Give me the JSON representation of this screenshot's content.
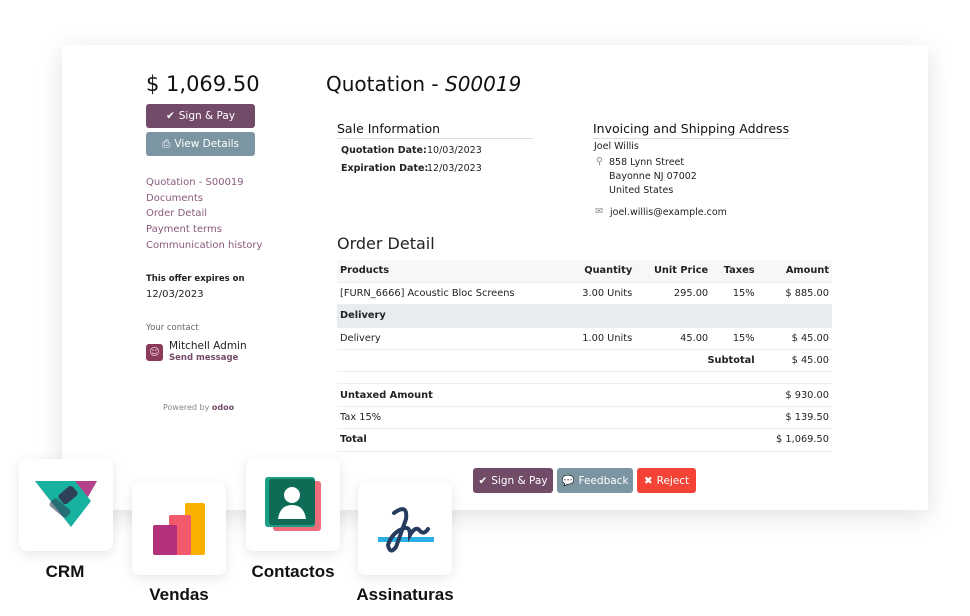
{
  "sidebar": {
    "amount": "$ 1,069.50",
    "sign_pay": "Sign & Pay",
    "view_details": "View Details",
    "nav": [
      "Quotation - S00019",
      "Documents",
      "Order Detail",
      "Payment terms",
      "Communication history"
    ],
    "expires_label": "This offer expires on",
    "expires_date": "12/03/2023",
    "contact_label": "Your contact",
    "contact_name": "Mitchell Admin",
    "send_message": "Send message",
    "powered_by": "Powered by",
    "brand": "odoo"
  },
  "header": {
    "title_prefix": "Quotation - ",
    "title_ref": "S00019"
  },
  "sale_info": {
    "heading": "Sale Information",
    "quotation_date_label": "Quotation Date:",
    "quotation_date": "10/03/2023",
    "expiration_date_label": "Expiration Date:",
    "expiration_date": "12/03/2023"
  },
  "address": {
    "heading": "Invoicing and Shipping Address",
    "name": "Joel Willis",
    "street": "858 Lynn Street",
    "city": "Bayonne NJ 07002",
    "country": "United States",
    "email": "joel.willis@example.com"
  },
  "order": {
    "heading": "Order Detail",
    "columns": [
      "Products",
      "Quantity",
      "Unit Price",
      "Taxes",
      "Amount"
    ],
    "rows": [
      {
        "product": "[FURN_6666] Acoustic Bloc Screens",
        "qty": "3.00 Units",
        "price": "295.00",
        "tax": "15%",
        "amount": "$ 885.00"
      }
    ],
    "section": "Delivery",
    "section_rows": [
      {
        "product": "Delivery",
        "qty": "1.00 Units",
        "price": "45.00",
        "tax": "15%",
        "amount": "$ 45.00"
      }
    ],
    "subtotal_label": "Subtotal",
    "subtotal": "$ 45.00",
    "untaxed_label": "Untaxed Amount",
    "untaxed": "$ 930.00",
    "tax_label": "Tax 15%",
    "tax": "$ 139.50",
    "total_label": "Total",
    "total": "$ 1,069.50"
  },
  "actions": {
    "sign_pay": "Sign & Pay",
    "feedback": "Feedback",
    "reject": "Reject"
  },
  "apps": [
    "CRM",
    "Vendas",
    "Contactos",
    "Assinaturas"
  ],
  "colors": {
    "primary": "#714b67",
    "secondary": "#7c95a2",
    "danger": "#f44336"
  }
}
